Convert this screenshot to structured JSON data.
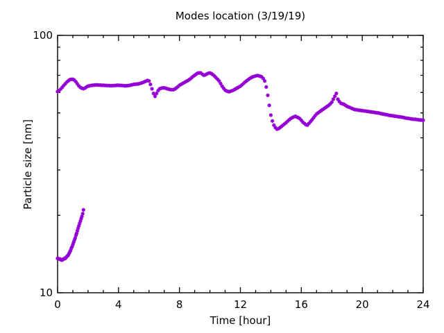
{
  "chart_data": {
    "type": "scatter",
    "title": "Modes location (3/19/19)",
    "xlabel": "Time [hour]",
    "ylabel": "Particle size [nm]",
    "xlim": [
      0,
      24
    ],
    "ylim": [
      10,
      100
    ],
    "yscale": "log",
    "grid": false,
    "legend": "none",
    "x_major_ticks": [
      0,
      4,
      8,
      12,
      16,
      20,
      24
    ],
    "x_minor_step": 1,
    "y_major_ticks": [
      10,
      100
    ],
    "y_minor_ticks": [
      20,
      30,
      40,
      50,
      60,
      70,
      80,
      90
    ],
    "marker": "asterisk-star",
    "marker_color": "#9400d3",
    "axis_color": "#000000",
    "background_color": "#ffffff",
    "series": [
      {
        "name": "main-mode",
        "t0": 0,
        "dt": 0.1,
        "values": [
          60.5,
          61.0,
          61.8,
          62.8,
          63.8,
          64.8,
          65.8,
          66.6,
          67.2,
          67.5,
          67.5,
          67.0,
          66.0,
          64.8,
          63.6,
          62.8,
          62.3,
          62.1,
          62.4,
          63.0,
          63.5,
          63.7,
          63.9,
          64.0,
          64.1,
          64.2,
          64.2,
          64.1,
          64.1,
          64.0,
          64.0,
          63.9,
          63.9,
          63.8,
          63.8,
          63.7,
          63.8,
          63.8,
          63.9,
          64.0,
          64.0,
          63.9,
          63.9,
          63.8,
          63.7,
          63.7,
          63.8,
          63.9,
          64.1,
          64.3,
          64.5,
          64.6,
          64.7,
          64.8,
          65.0,
          65.3,
          65.6,
          66.0,
          66.4,
          66.8,
          66.5,
          64.5,
          62.0,
          59.5,
          58.0,
          59.5,
          61.0,
          62.0,
          62.3,
          62.5,
          62.5,
          62.3,
          62.0,
          61.8,
          61.6,
          61.5,
          61.5,
          61.9,
          62.5,
          63.2,
          64.0,
          64.5,
          65.0,
          65.5,
          66.0,
          66.5,
          67.0,
          67.7,
          68.5,
          69.3,
          70.0,
          70.7,
          71.3,
          71.5,
          71.5,
          70.7,
          70.0,
          70.3,
          70.8,
          71.2,
          71.5,
          71.0,
          70.3,
          69.5,
          68.5,
          67.5,
          66.5,
          65.0,
          63.5,
          62.3,
          61.3,
          60.8,
          60.5,
          60.5,
          60.8,
          61.1,
          61.5,
          62.0,
          62.5,
          63.0,
          63.5,
          64.2,
          65.0,
          65.8,
          66.5,
          67.2,
          67.9,
          68.5,
          69.0,
          69.3,
          69.6,
          69.8,
          69.7,
          69.4,
          69.0,
          68.0,
          66.5,
          63.0,
          58.5,
          53.5,
          49.0,
          46.5,
          44.8,
          43.8,
          43.2,
          43.4,
          43.8,
          44.3,
          44.8,
          45.3,
          45.8,
          46.4,
          47.0,
          47.5,
          47.9,
          48.2,
          48.5,
          48.2,
          47.9,
          47.5,
          46.8,
          46.0,
          45.5,
          45.0,
          44.8,
          45.5,
          46.2,
          47.0,
          47.8,
          48.7,
          49.5,
          50.0,
          50.5,
          51.0,
          51.5,
          52.0,
          52.5,
          53.0,
          53.5,
          54.2,
          55.0,
          56.5,
          58.0,
          59.5,
          56.5,
          55.3,
          54.5,
          54.2,
          54.0,
          53.5,
          53.0,
          52.7,
          52.4,
          52.1,
          51.8,
          51.5,
          51.4,
          51.3,
          51.2,
          51.1,
          51.0,
          50.9,
          50.8,
          50.7,
          50.6,
          50.5,
          50.4,
          50.3,
          50.2,
          50.1,
          50.0,
          49.9,
          49.7,
          49.6,
          49.4,
          49.3,
          49.2,
          49.0,
          48.9,
          48.8,
          48.7,
          48.6,
          48.5,
          48.4,
          48.3,
          48.2,
          48.1,
          48.0,
          47.8,
          47.7,
          47.6,
          47.5,
          47.4,
          47.3,
          47.2,
          47.2,
          47.1,
          47.0,
          46.9,
          46.9,
          46.8
        ]
      },
      {
        "name": "lower-mode",
        "t0": 0,
        "dt": 0.05,
        "values": [
          13.6,
          13.6,
          13.5,
          13.5,
          13.5,
          13.4,
          13.4,
          13.5,
          13.5,
          13.6,
          13.6,
          13.7,
          13.8,
          13.9,
          14.0,
          14.2,
          14.4,
          14.6,
          14.9,
          15.1,
          15.4,
          15.7,
          16.0,
          16.3,
          16.7,
          17.0,
          17.4,
          17.8,
          18.2,
          18.6,
          19.0,
          19.4,
          19.8,
          20.3,
          21.0
        ]
      }
    ]
  }
}
